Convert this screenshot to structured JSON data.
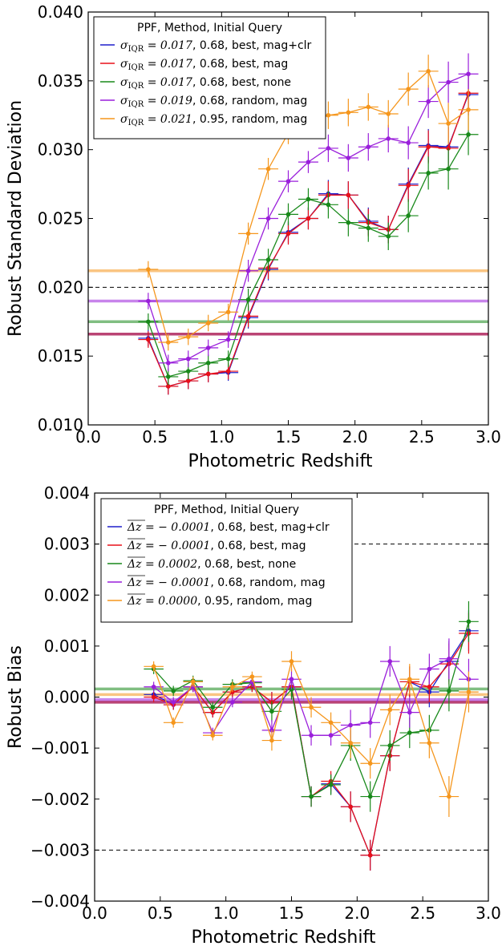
{
  "chart_data": [
    {
      "type": "line",
      "xlabel": "Photometric Redshift",
      "ylabel": "Robust Standard Deviation",
      "xlim": [
        0.0,
        3.0
      ],
      "ylim": [
        0.01,
        0.04
      ],
      "xticks": [
        "0.0",
        "0.5",
        "1.0",
        "1.5",
        "2.0",
        "2.5",
        "3.0"
      ],
      "yticks": [
        "0.010",
        "0.015",
        "0.020",
        "0.025",
        "0.030",
        "0.035",
        "0.040"
      ],
      "legend_title": "PPF, Method, Initial Query",
      "legend_position": "top-left",
      "grid": false,
      "reference_lines": [
        {
          "y": 0.02,
          "style": "dashed"
        }
      ],
      "x": [
        0.45,
        0.6,
        0.75,
        0.9,
        1.05,
        1.2,
        1.35,
        1.5,
        1.65,
        1.8,
        1.95,
        2.1,
        2.25,
        2.4,
        2.55,
        2.7,
        2.85
      ],
      "series": [
        {
          "name": "σIQR = 0.017, 0.68, best, mag+clr",
          "color": "#1f1fcc",
          "mean": 0.0166,
          "values": [
            0.0163,
            0.0128,
            0.0132,
            0.0137,
            0.0138,
            0.0178,
            0.0213,
            0.024,
            0.025,
            0.0268,
            0.0267,
            0.0248,
            0.0242,
            0.0275,
            0.0303,
            0.0302,
            0.034
          ],
          "yerr": [
            0.0006,
            0.0006,
            0.0006,
            0.0006,
            0.0006,
            0.0008,
            0.0008,
            0.0008,
            0.0008,
            0.001,
            0.001,
            0.001,
            0.001,
            0.0012,
            0.0012,
            0.0015,
            0.0015
          ]
        },
        {
          "name": "σIQR = 0.017, 0.68, best, mag",
          "color": "#e8101a",
          "mean": 0.0166,
          "values": [
            0.0162,
            0.0128,
            0.0132,
            0.0137,
            0.0139,
            0.0179,
            0.0214,
            0.0239,
            0.025,
            0.0267,
            0.0267,
            0.0247,
            0.0242,
            0.0274,
            0.0302,
            0.0301,
            0.0341
          ],
          "yerr": [
            0.0006,
            0.0006,
            0.0006,
            0.0006,
            0.0006,
            0.0008,
            0.0008,
            0.0008,
            0.0008,
            0.001,
            0.001,
            0.001,
            0.001,
            0.0012,
            0.0012,
            0.0015,
            0.0015
          ]
        },
        {
          "name": "σIQR = 0.017, 0.68, best, none",
          "color": "#18891a",
          "mean": 0.0175,
          "values": [
            0.0175,
            0.0135,
            0.0139,
            0.0145,
            0.0148,
            0.0191,
            0.022,
            0.0253,
            0.0264,
            0.026,
            0.0247,
            0.0243,
            0.0237,
            0.0252,
            0.0283,
            0.0286,
            0.0311
          ],
          "yerr": [
            0.0006,
            0.0006,
            0.0006,
            0.0006,
            0.0006,
            0.0008,
            0.0008,
            0.0008,
            0.0008,
            0.001,
            0.001,
            0.001,
            0.001,
            0.0012,
            0.0012,
            0.0015,
            0.0015
          ]
        },
        {
          "name": "σIQR = 0.019, 0.68, random, mag",
          "color": "#9a1fdb",
          "mean": 0.019,
          "values": [
            0.019,
            0.0145,
            0.0148,
            0.0156,
            0.0162,
            0.0212,
            0.025,
            0.0277,
            0.0291,
            0.0301,
            0.0294,
            0.0302,
            0.0308,
            0.0305,
            0.0335,
            0.0349,
            0.0355
          ],
          "yerr": [
            0.0006,
            0.0006,
            0.0006,
            0.0006,
            0.0006,
            0.0008,
            0.0008,
            0.0008,
            0.0008,
            0.001,
            0.001,
            0.001,
            0.001,
            0.0012,
            0.0012,
            0.0015,
            0.0015
          ]
        },
        {
          "name": "σIQR = 0.021, 0.95, random, mag",
          "color": "#f5961c",
          "mean": 0.0212,
          "values": [
            0.0213,
            0.016,
            0.0164,
            0.0174,
            0.0182,
            0.0239,
            0.0286,
            0.0312,
            0.0318,
            0.0325,
            0.0327,
            0.0331,
            0.0326,
            0.0344,
            0.0357,
            0.0319,
            0.0329
          ],
          "yerr": [
            0.0006,
            0.0006,
            0.0006,
            0.0006,
            0.0006,
            0.0008,
            0.0008,
            0.0008,
            0.0008,
            0.001,
            0.001,
            0.001,
            0.001,
            0.0012,
            0.0012,
            0.0015,
            0.0015
          ]
        }
      ],
      "legend_entries": [
        {
          "math": "σ",
          "sub": "IQR",
          "value": "= 0.017",
          "text": ", 0.68, best, mag+clr"
        },
        {
          "math": "σ",
          "sub": "IQR",
          "value": "= 0.017",
          "text": ", 0.68, best, mag"
        },
        {
          "math": "σ",
          "sub": "IQR",
          "value": "= 0.017",
          "text": ", 0.68, best, none"
        },
        {
          "math": "σ",
          "sub": "IQR",
          "value": "= 0.019",
          "text": ", 0.68, random, mag"
        },
        {
          "math": "σ",
          "sub": "IQR",
          "value": "= 0.021",
          "text": ", 0.95, random, mag"
        }
      ]
    },
    {
      "type": "line",
      "xlabel": "Photometric Redshift",
      "ylabel": "Robust Bias",
      "xlim": [
        0.0,
        3.0
      ],
      "ylim": [
        -0.004,
        0.004
      ],
      "xticks": [
        "0.0",
        "0.5",
        "1.0",
        "1.5",
        "2.0",
        "2.5",
        "3.0"
      ],
      "yticks": [
        "−0.004",
        "−0.003",
        "−0.002",
        "−0.001",
        "0.000",
        "0.001",
        "0.002",
        "0.003",
        "0.004"
      ],
      "legend_title": "PPF, Method, Initial Query",
      "legend_position": "top-left",
      "grid": false,
      "reference_lines": [
        {
          "y": 0.003,
          "style": "dashed"
        },
        {
          "y": -0.003,
          "style": "dashed"
        }
      ],
      "x": [
        0.45,
        0.6,
        0.75,
        0.9,
        1.05,
        1.2,
        1.35,
        1.5,
        1.65,
        1.8,
        1.95,
        2.1,
        2.25,
        2.4,
        2.55,
        2.7,
        2.85
      ],
      "series": [
        {
          "name": "Δz = −0.0001, 0.68, best, mag+clr",
          "color": "#1f1fcc",
          "mean": -0.0001,
          "values": [
            5e-05,
            -0.00015,
            0.0002,
            -0.0003,
            0.0001,
            0.0002,
            -0.0001,
            0.0002,
            -0.00195,
            -0.0017,
            -0.00215,
            -0.0031,
            -0.00115,
            0.0003,
            0.0001,
            0.0007,
            0.0013
          ],
          "yerr": [
            0.0001,
            0.0001,
            0.0001,
            0.0001,
            0.0001,
            0.0001,
            0.0002,
            0.0002,
            0.0002,
            0.0002,
            0.0003,
            0.0003,
            0.0003,
            0.0003,
            0.0003,
            0.0004,
            0.0004
          ]
        },
        {
          "name": "Δz = −0.0001, 0.68, best, mag",
          "color": "#e8101a",
          "mean": -0.0001,
          "values": [
            0.0,
            -0.00015,
            0.0002,
            -0.0003,
            0.0001,
            0.0002,
            -0.0001,
            0.0002,
            -0.00195,
            -0.00165,
            -0.00215,
            -0.0031,
            -0.00115,
            0.0003,
            0.0002,
            0.00065,
            0.00125
          ],
          "yerr": [
            0.0001,
            0.0001,
            0.0001,
            0.0001,
            0.0001,
            0.0001,
            0.0002,
            0.0002,
            0.0002,
            0.0002,
            0.0003,
            0.0003,
            0.0003,
            0.0003,
            0.0003,
            0.0004,
            0.0004
          ]
        },
        {
          "name": "Δz = 0.0002, 0.68, best, none",
          "color": "#18891a",
          "mean": 0.00016,
          "values": [
            0.00055,
            0.00012,
            0.00032,
            -0.0002,
            0.00025,
            0.00028,
            -0.00028,
            0.00015,
            -0.00195,
            -0.00172,
            -0.00095,
            -0.00195,
            -0.00095,
            -0.0007,
            -0.00065,
            0.00012,
            0.00148
          ],
          "yerr": [
            0.0001,
            0.0001,
            0.0001,
            0.0001,
            0.0001,
            0.0001,
            0.0002,
            0.0002,
            0.0002,
            0.0002,
            0.0003,
            0.0003,
            0.0003,
            0.0003,
            0.0003,
            0.0004,
            0.0004
          ]
        },
        {
          "name": "Δz = −0.0001, 0.68, random, mag",
          "color": "#9a1fdb",
          "mean": -5e-05,
          "values": [
            0.0002,
            -0.0001,
            0.0002,
            -0.0007,
            -0.0001,
            0.0003,
            -0.00065,
            0.00035,
            -0.00075,
            -0.00075,
            -0.00055,
            -0.0005,
            0.0007,
            -0.0003,
            0.00055,
            0.00075,
            0.00035
          ],
          "yerr": [
            0.0001,
            0.0001,
            0.0001,
            0.0001,
            0.0001,
            0.0001,
            0.0002,
            0.0002,
            0.0002,
            0.0002,
            0.0003,
            0.0003,
            0.0003,
            0.0003,
            0.0003,
            0.0004,
            0.0004
          ]
        },
        {
          "name": "Δz = 0.0000, 0.95, random, mag",
          "color": "#f5961c",
          "mean": 5e-05,
          "values": [
            0.0006,
            -0.0005,
            0.0003,
            -0.00075,
            0.0002,
            0.0004,
            -0.00085,
            0.0007,
            -0.0002,
            -0.0005,
            -0.0009,
            -0.0013,
            -0.00025,
            0.00035,
            -0.0009,
            -0.00195,
            0.0001
          ],
          "yerr": [
            0.0001,
            0.0001,
            0.0001,
            0.0001,
            0.0001,
            0.0001,
            0.0002,
            0.0002,
            0.0002,
            0.0002,
            0.0003,
            0.0003,
            0.0003,
            0.0003,
            0.0003,
            0.0004,
            0.0004
          ]
        }
      ],
      "legend_entries": [
        {
          "math": "Δz",
          "value": "= − 0.0001",
          "text": ", 0.68, best, mag+clr"
        },
        {
          "math": "Δz",
          "value": "= − 0.0001",
          "text": ", 0.68, best, mag"
        },
        {
          "math": "Δz",
          "value": "= 0.0002",
          "text": ", 0.68, best, none"
        },
        {
          "math": "Δz",
          "value": "= − 0.0001",
          "text": ", 0.68, random, mag"
        },
        {
          "math": "Δz",
          "value": "= 0.0000",
          "text": ", 0.95, random, mag"
        }
      ]
    }
  ]
}
